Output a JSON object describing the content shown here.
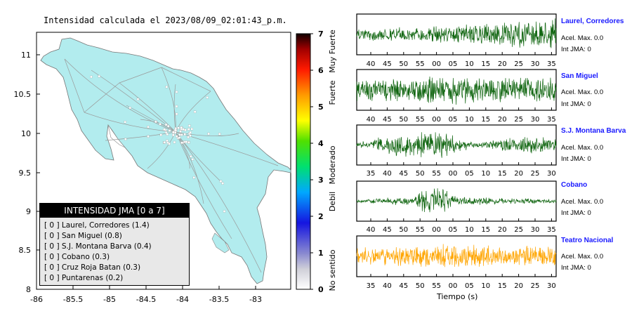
{
  "map": {
    "title": "Intensidad calculada el 2023/08/09_02:01:43_p.m.",
    "land_color": "#b2ecee",
    "x_ticks": [
      "-86",
      "-85.5",
      "-85",
      "-84.5",
      "-84",
      "-83.5",
      "-83"
    ],
    "y_ticks": [
      "11",
      "10.5",
      "10",
      "9.5",
      "9",
      "8.5",
      "8"
    ],
    "legend": {
      "title": "INTENSIDAD JMA [0 a 7]",
      "items": [
        "[ 0 ]  Laurel, Corredores (1.4)",
        "[ 0 ]  San Miguel (0.8)",
        "[ 0 ]  S.J. Montana Barva (0.4)",
        "[ 0 ]  Cobano (0.3)",
        "[ 0 ]  Cruz Roja Batan (0.3)",
        "[ 0 ]  Puntarenas (0.2)"
      ]
    }
  },
  "colorbar": {
    "ticks": [
      "0",
      "1",
      "2",
      "3",
      "4",
      "5",
      "6",
      "7"
    ],
    "labels": [
      "No sentido",
      "Debil",
      "Moderado",
      "Fuerte",
      "Muy Fuerte"
    ]
  },
  "traces": [
    {
      "station": "Laurel, Corredores",
      "accel": "Acel. Max. 0.0",
      "jma": "Int JMA: 0",
      "color": "#116611",
      "ticks": [
        "40",
        "45",
        "50",
        "55",
        "00",
        "05",
        "10",
        "15",
        "20",
        "25",
        "30",
        "35"
      ],
      "amp": [
        [
          0,
          0.35
        ],
        [
          0.5,
          0.55
        ],
        [
          0.9,
          0.9
        ]
      ]
    },
    {
      "station": "San Miguel",
      "accel": "Acel. Max. 0.0",
      "jma": "Int JMA: 0",
      "color": "#116611",
      "ticks": [
        "40",
        "45",
        "50",
        "55",
        "00",
        "05",
        "10",
        "15",
        "20",
        "25",
        "30",
        "35"
      ],
      "amp": [
        [
          0,
          0.6
        ],
        [
          0.55,
          0.9
        ],
        [
          1,
          0.7
        ]
      ]
    },
    {
      "station": "S.J. Montana Barva",
      "accel": "Acel. Max. 0.0",
      "jma": "Int JMA: 0",
      "color": "#116611",
      "ticks": [
        "35",
        "40",
        "45",
        "50",
        "55",
        "00",
        "05",
        "10",
        "15",
        "20",
        "25",
        "30"
      ],
      "amp": [
        [
          0,
          0.15
        ],
        [
          0.22,
          0.75
        ],
        [
          0.4,
          0.9
        ],
        [
          0.6,
          0.15
        ],
        [
          0.82,
          0.55
        ],
        [
          1,
          0.4
        ]
      ]
    },
    {
      "station": "Cobano",
      "accel": "Acel. Max. 0.0",
      "jma": "Int JMA: 0",
      "color": "#116611",
      "ticks": [
        "40",
        "45",
        "50",
        "55",
        "00",
        "05",
        "10",
        "15",
        "20",
        "25",
        "30",
        "35"
      ],
      "amp": [
        [
          0,
          0.1
        ],
        [
          0.3,
          0.3
        ],
        [
          0.34,
          0.9
        ],
        [
          0.42,
          0.9
        ],
        [
          0.5,
          0.25
        ],
        [
          1,
          0.12
        ]
      ]
    },
    {
      "station": "Teatro Nacional",
      "accel": "Acel. Max. 0.0",
      "jma": "Int JMA: 0",
      "color": "#ffa500",
      "ticks": [
        "35",
        "40",
        "45",
        "50",
        "55",
        "00",
        "05",
        "10",
        "15",
        "20",
        "25",
        "30"
      ],
      "amp": [
        [
          0,
          0.55
        ],
        [
          0.5,
          0.75
        ],
        [
          1,
          0.6
        ]
      ]
    }
  ],
  "xlabel": "Tiempo (s)",
  "chart_data": [
    {
      "type": "heatmap",
      "title": "Intensidad calculada el 2023/08/09_02:01:43_p.m.",
      "xlim": [
        -86,
        -82.6
      ],
      "ylim": [
        8,
        11.3
      ],
      "legend_title": "INTENSIDAD JMA [0 a 7]",
      "stations": [
        {
          "name": "Laurel, Corredores",
          "intensity": 1.4,
          "jma": 0
        },
        {
          "name": "San Miguel",
          "intensity": 0.8,
          "jma": 0
        },
        {
          "name": "S.J. Montana Barva",
          "intensity": 0.4,
          "jma": 0
        },
        {
          "name": "Cobano",
          "intensity": 0.3,
          "jma": 0
        },
        {
          "name": "Cruz Roja Batan",
          "intensity": 0.3,
          "jma": 0
        },
        {
          "name": "Puntarenas",
          "intensity": 0.2,
          "jma": 0
        }
      ]
    },
    {
      "type": "line",
      "xlabel": "Tiempo (s)",
      "series": [
        {
          "name": "Laurel, Corredores",
          "acel_max": 0.0,
          "int_jma": 0
        },
        {
          "name": "San Miguel",
          "acel_max": 0.0,
          "int_jma": 0
        },
        {
          "name": "S.J. Montana Barva",
          "acel_max": 0.0,
          "int_jma": 0
        },
        {
          "name": "Cobano",
          "acel_max": 0.0,
          "int_jma": 0
        },
        {
          "name": "Teatro Nacional",
          "acel_max": 0.0,
          "int_jma": 0
        }
      ]
    }
  ]
}
